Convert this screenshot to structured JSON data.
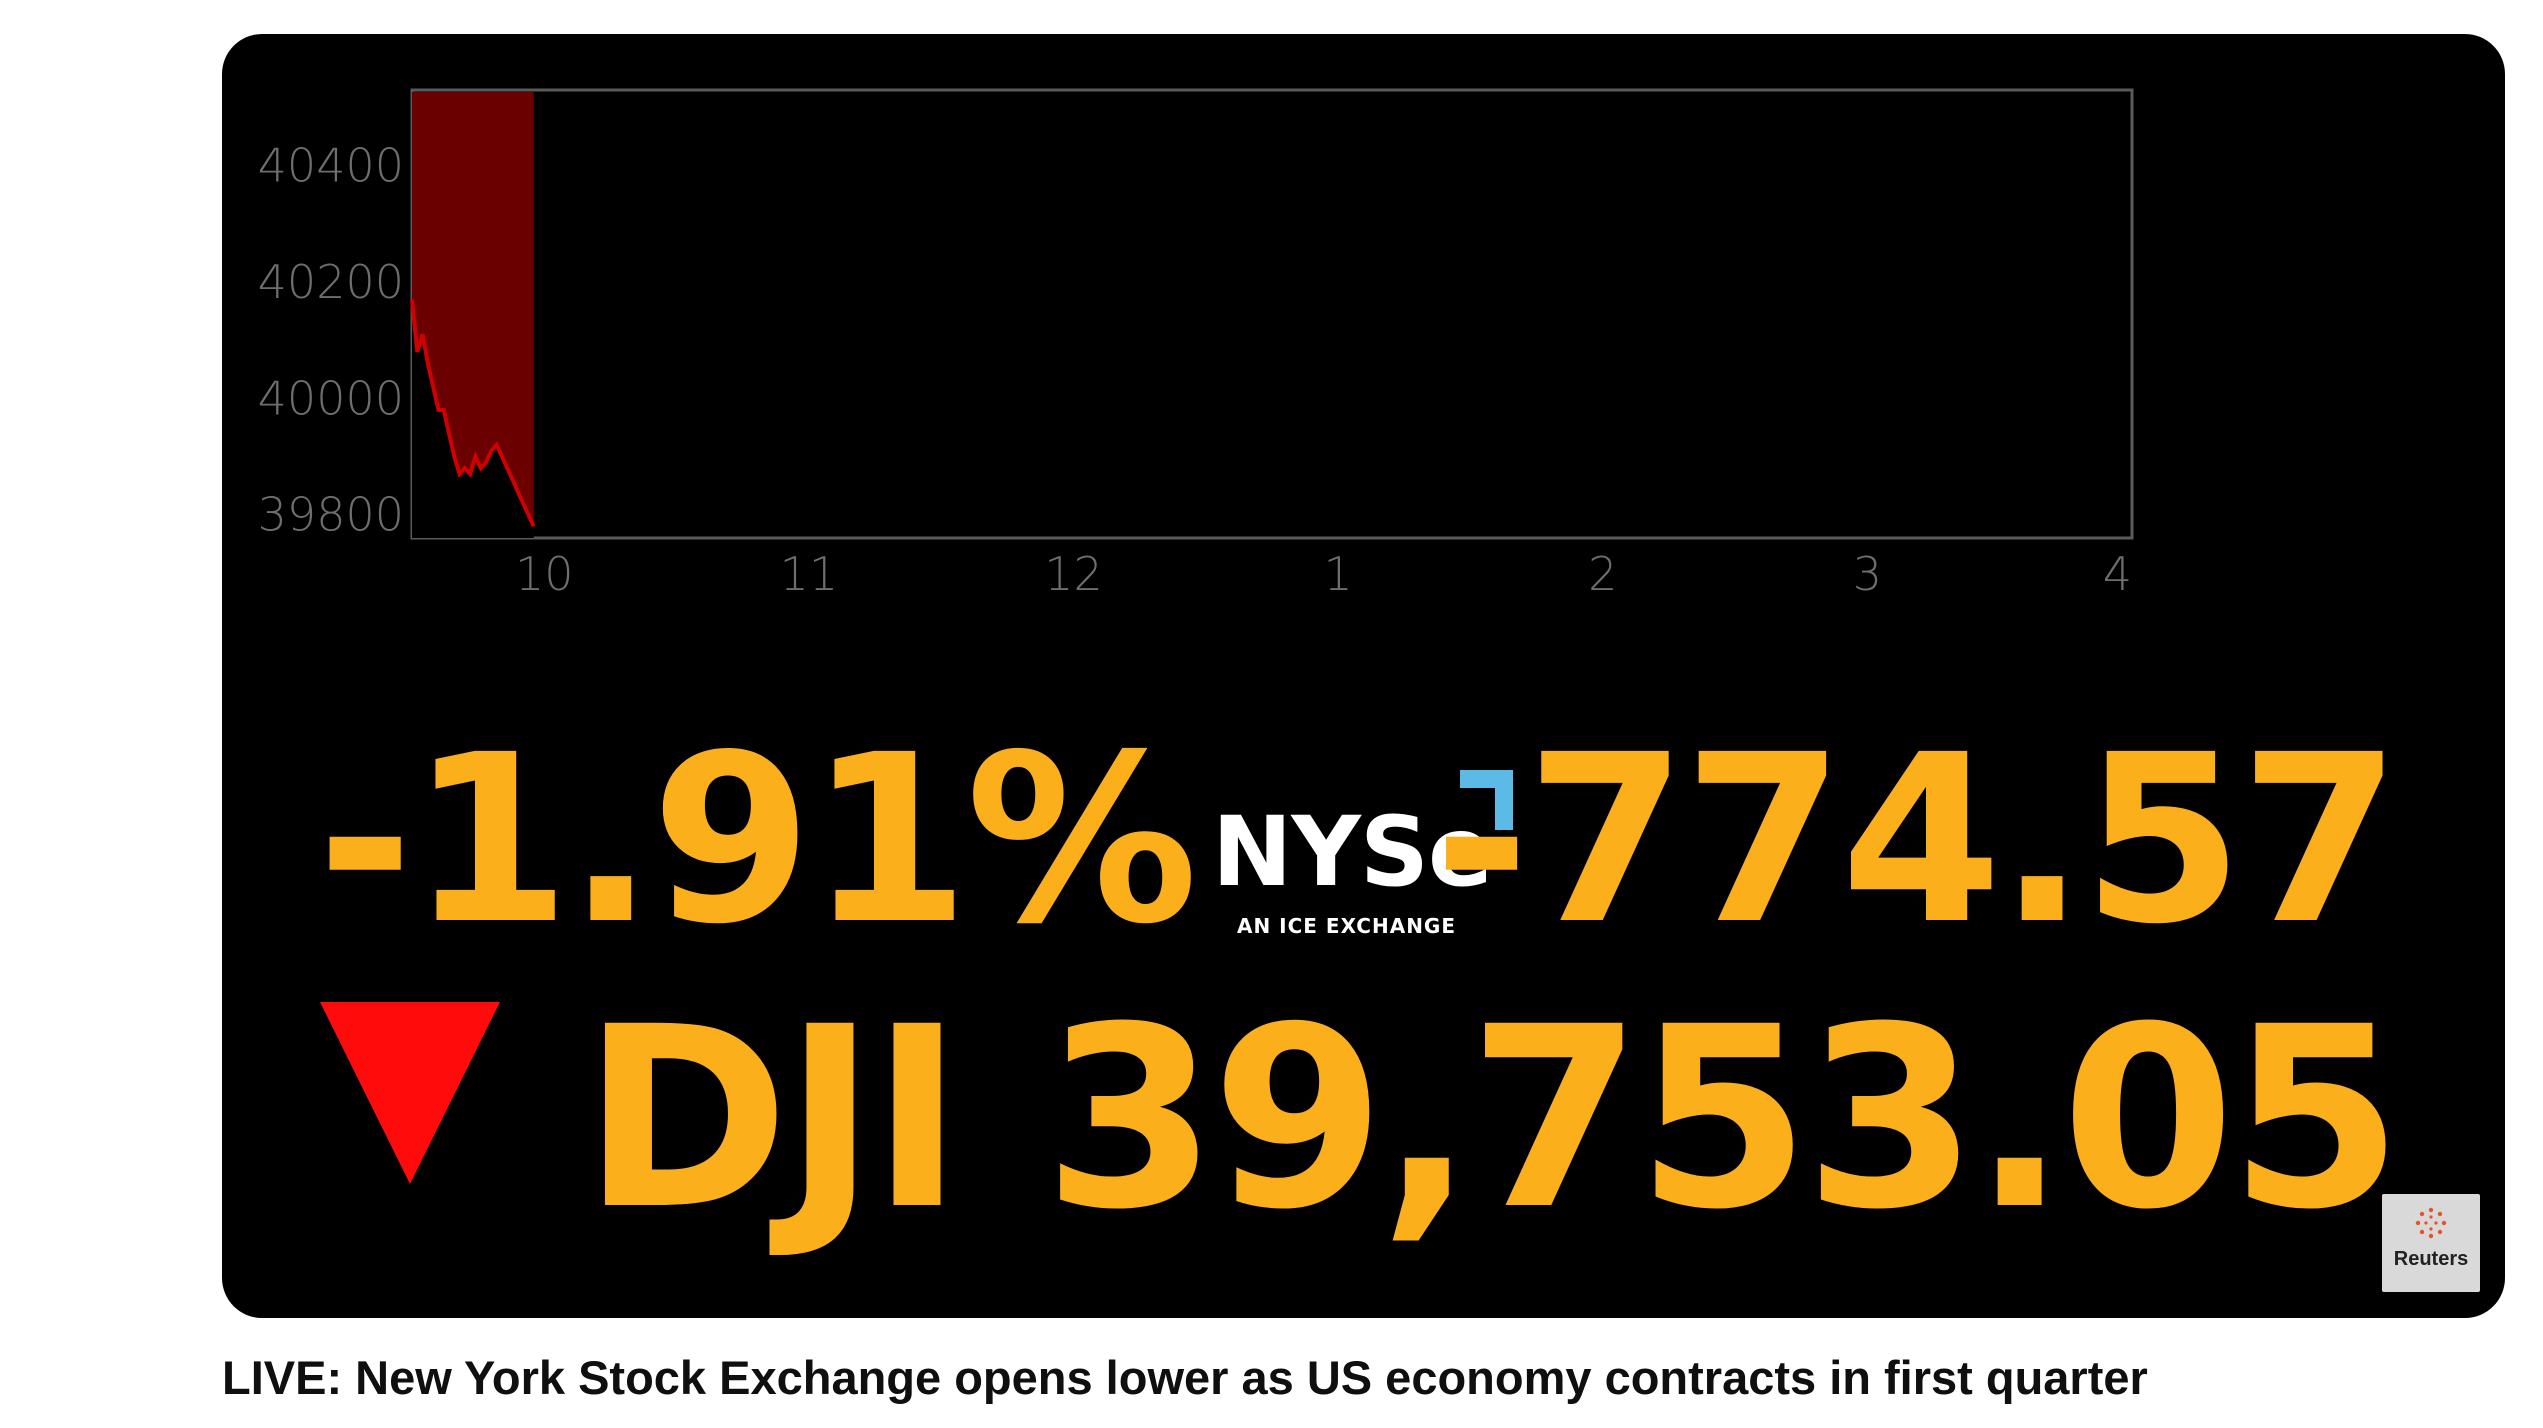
{
  "video": {
    "title": "LIVE: New York Stock Exchange opens lower as US economy contracts in first quarter"
  },
  "ticker": {
    "percent_change": "-1.91%",
    "point_change": "-774.57",
    "index_name": "DJI",
    "index_value": "39,753.05",
    "direction_icon": "down-triangle-icon"
  },
  "exchange_logo": {
    "name": "NYSe",
    "subtitle": "AN ICE EXCHANGE"
  },
  "watermark": {
    "label": "Reuters",
    "icon": "reuters-dots-icon"
  },
  "colors": {
    "accent": "#fbb01b",
    "down": "#ff0b0b",
    "area_fill": "#6b0000",
    "line": "#d10000",
    "logo_accent": "#5bbbe6"
  },
  "chart_data": {
    "type": "area",
    "title": "",
    "xlabel": "",
    "ylabel": "",
    "x_ticks": [
      "10",
      "11",
      "12",
      "1",
      "2",
      "3",
      "4"
    ],
    "y_ticks": [
      40400,
      40200,
      40000,
      39800
    ],
    "ylim": [
      39760,
      40530
    ],
    "xlim_hours": [
      9.5,
      16
    ],
    "series": [
      {
        "x": [
          9.5,
          9.52,
          9.54,
          9.56,
          9.58,
          9.6,
          9.62,
          9.64,
          9.66,
          9.68,
          9.7,
          9.72,
          9.74,
          9.76,
          9.78,
          9.8,
          9.82,
          9.84,
          9.86,
          9.88,
          9.9,
          9.92,
          9.94,
          9.96
        ],
        "y": [
          40170,
          40080,
          40110,
          40060,
          40020,
          39980,
          39980,
          39940,
          39900,
          39870,
          39880,
          39870,
          39900,
          39880,
          39890,
          39910,
          39920,
          39900,
          39880,
          39860,
          39840,
          39820,
          39800,
          39780
        ]
      }
    ],
    "grid": false,
    "legend": "none"
  }
}
